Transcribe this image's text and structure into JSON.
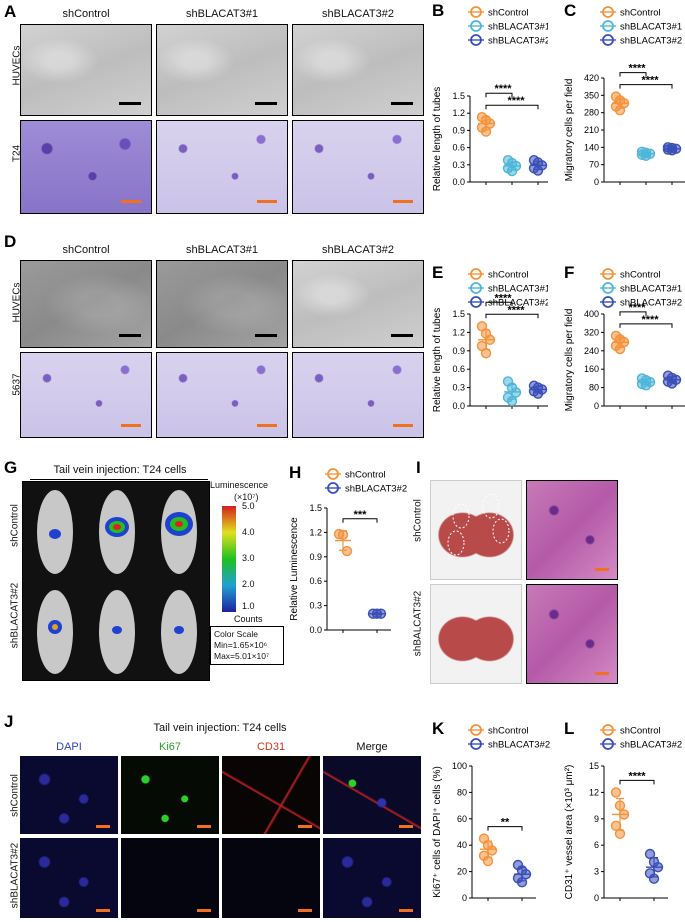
{
  "panels": {
    "A": {
      "label": "A",
      "columns": [
        "shControl",
        "shBLACAT3#1",
        "shBLACAT3#2"
      ],
      "rows": [
        "HUVECs",
        "T24"
      ]
    },
    "D": {
      "label": "D",
      "columns": [
        "shControl",
        "shBLACAT3#1",
        "shBLACAT3#2"
      ],
      "rows": [
        "HUVECs",
        "5637"
      ]
    },
    "G": {
      "label": "G",
      "title": "Tail vein injection: T24 cells",
      "rows": [
        "shControl",
        "shBLACAT3#2"
      ],
      "colorbar_title": "Luminescence",
      "colorbar_unit": "(×10⁷)",
      "colorbar_ticks": [
        "5.0",
        "4.0",
        "3.0",
        "2.0",
        "1.0"
      ],
      "colorbar_counts": "Counts",
      "color_scale_title": "Color Scale",
      "color_scale_min": "Min=1.65×10⁶",
      "color_scale_max": "Max=5.01×10⁷"
    },
    "I": {
      "label": "I",
      "rows": [
        "shControl",
        "shBALCAT3#2"
      ]
    },
    "J": {
      "label": "J",
      "title": "Tail vein injection: T24 cells",
      "columns": [
        "DAPI",
        "Ki67",
        "CD31",
        "Merge"
      ],
      "rows": [
        "shControl",
        "shBLACAT3#2"
      ]
    }
  },
  "colors": {
    "orange": "#f5923a",
    "teal": "#4fb6d8",
    "blue": "#3a4fb8",
    "scalebar_black": "#000000",
    "scalebar_orange": "#f07020"
  },
  "chart_data": [
    {
      "id": "B",
      "label": "B",
      "type": "scatter",
      "legend": [
        "shControl",
        "shBLACAT3#1",
        "shBLACAT3#2"
      ],
      "ylabel": "Relative length of tubes",
      "ylim": [
        0,
        1.5
      ],
      "yticks": [
        "0.0",
        "0.3",
        "0.6",
        "0.9",
        "1.2",
        "1.5"
      ],
      "significance": [
        "****",
        "****"
      ],
      "series": [
        {
          "name": "shControl",
          "values": [
            1.13,
            1.08,
            1.02,
            0.95,
            0.88
          ],
          "mean": 1.02,
          "sd": 0.11
        },
        {
          "name": "shBLACAT3#1",
          "values": [
            0.38,
            0.33,
            0.28,
            0.24,
            0.19
          ],
          "mean": 0.28,
          "sd": 0.07
        },
        {
          "name": "shBLACAT3#2",
          "values": [
            0.38,
            0.34,
            0.29,
            0.24,
            0.2
          ],
          "mean": 0.29,
          "sd": 0.07
        }
      ]
    },
    {
      "id": "C",
      "label": "C",
      "type": "scatter",
      "legend": [
        "shControl",
        "shBLACAT3#1",
        "shBLACAT3#2"
      ],
      "ylabel": "Migratory cells per field",
      "ylim": [
        0,
        420
      ],
      "yticks": [
        "0",
        "70",
        "140",
        "210",
        "280",
        "350",
        "420"
      ],
      "significance": [
        "****",
        "****"
      ],
      "series": [
        {
          "name": "shControl",
          "values": [
            345,
            330,
            318,
            305,
            290
          ],
          "mean": 318,
          "sd": 20
        },
        {
          "name": "shBLACAT3#1",
          "values": [
            122,
            118,
            114,
            110,
            106
          ],
          "mean": 114,
          "sd": 6
        },
        {
          "name": "shBLACAT3#2",
          "values": [
            140,
            137,
            134,
            131,
            128
          ],
          "mean": 134,
          "sd": 5
        }
      ]
    },
    {
      "id": "E",
      "label": "E",
      "type": "scatter",
      "legend": [
        "shControl",
        "shBLACAT3#1",
        "shBLACAT3#2"
      ],
      "ylabel": "Relative length of tubes",
      "ylim": [
        0,
        1.5
      ],
      "yticks": [
        "0.0",
        "0.3",
        "0.6",
        "0.9",
        "1.2",
        "1.5"
      ],
      "significance": [
        "****",
        "****"
      ],
      "series": [
        {
          "name": "shControl",
          "values": [
            1.3,
            1.18,
            1.08,
            0.98,
            0.86
          ],
          "mean": 1.08,
          "sd": 0.16
        },
        {
          "name": "shBLACAT3#1",
          "values": [
            0.4,
            0.3,
            0.22,
            0.14,
            0.08
          ],
          "mean": 0.23,
          "sd": 0.12
        },
        {
          "name": "shBLACAT3#2",
          "values": [
            0.33,
            0.3,
            0.27,
            0.24,
            0.2
          ],
          "mean": 0.27,
          "sd": 0.05
        }
      ]
    },
    {
      "id": "F",
      "label": "F",
      "type": "scatter",
      "legend": [
        "shControl",
        "shBLACAT3#1",
        "shBLACAT3#2"
      ],
      "ylabel": "Migratory cells per field",
      "ylim": [
        0,
        400
      ],
      "yticks": [
        "0",
        "80",
        "160",
        "240",
        "320",
        "400"
      ],
      "significance": [
        "****",
        "****"
      ],
      "series": [
        {
          "name": "shControl",
          "values": [
            305,
            290,
            278,
            262,
            248
          ],
          "mean": 277,
          "sd": 22
        },
        {
          "name": "shBLACAT3#1",
          "values": [
            120,
            112,
            104,
            96,
            90
          ],
          "mean": 104,
          "sd": 12
        },
        {
          "name": "shBLACAT3#2",
          "values": [
            132,
            122,
            114,
            106,
            98
          ],
          "mean": 114,
          "sd": 13
        }
      ]
    },
    {
      "id": "H",
      "label": "H",
      "type": "scatter",
      "legend": [
        "shControl",
        "shBLACAT3#2"
      ],
      "ylabel": "Relative Luminescence",
      "ylim": [
        0,
        1.5
      ],
      "yticks": [
        "0.0",
        "0.3",
        "0.6",
        "0.9",
        "1.2",
        "1.5"
      ],
      "significance": [
        "***"
      ],
      "series": [
        {
          "name": "shControl",
          "values": [
            1.18,
            1.17,
            0.97
          ],
          "mean": 1.1,
          "sd": 0.12
        },
        {
          "name": "shBLACAT3#2",
          "values": [
            0.2,
            0.2,
            0.2
          ],
          "mean": 0.2,
          "sd": 0.01
        }
      ]
    },
    {
      "id": "K",
      "label": "K",
      "type": "scatter",
      "legend": [
        "shControl",
        "shBLACAT3#2"
      ],
      "ylabel": "Ki67⁺ cells of DAPI⁺ cells (%)",
      "ylim": [
        0,
        100
      ],
      "yticks": [
        "0",
        "20",
        "40",
        "60",
        "80",
        "100"
      ],
      "significance": [
        "**"
      ],
      "series": [
        {
          "name": "shControl",
          "values": [
            45,
            40,
            36,
            32,
            28
          ],
          "mean": 37,
          "sd": 6
        },
        {
          "name": "shBLACAT3#2",
          "values": [
            25,
            21,
            18,
            15,
            12
          ],
          "mean": 18,
          "sd": 5
        }
      ]
    },
    {
      "id": "L",
      "label": "L",
      "type": "scatter",
      "legend": [
        "shControl",
        "shBLACAT3#2"
      ],
      "ylabel": "CD31⁺ vessel area (×10³ μm²)",
      "ylim": [
        0,
        15
      ],
      "yticks": [
        "0",
        "3",
        "6",
        "9",
        "12",
        "15"
      ],
      "significance": [
        "****"
      ],
      "series": [
        {
          "name": "shControl",
          "values": [
            12.0,
            10.5,
            9.5,
            8.2,
            7.3
          ],
          "mean": 9.5,
          "sd": 1.8
        },
        {
          "name": "shBLACAT3#2",
          "values": [
            5.0,
            4.1,
            3.5,
            2.8,
            2.2
          ],
          "mean": 3.5,
          "sd": 1.1
        }
      ]
    }
  ]
}
